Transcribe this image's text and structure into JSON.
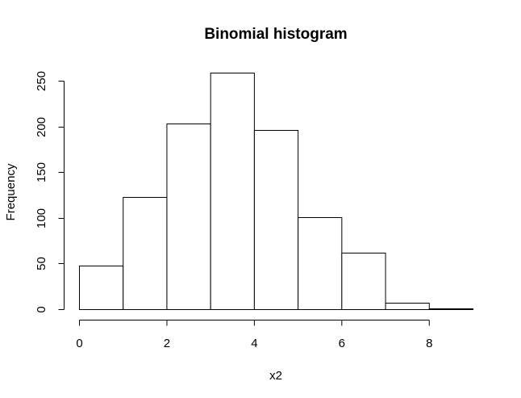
{
  "chart_data": {
    "type": "bar",
    "title": "Binomial histogram",
    "xlabel": "x2",
    "ylabel": "Frequency",
    "bin_edges": [
      0,
      1,
      2,
      3,
      4,
      5,
      6,
      7,
      8,
      9
    ],
    "values": [
      48,
      123,
      203,
      259,
      196,
      101,
      62,
      7,
      1
    ],
    "xlim": [
      0,
      9
    ],
    "ylim": [
      0,
      259
    ],
    "xticks": [
      0,
      2,
      4,
      6,
      8
    ],
    "yticks": [
      0,
      50,
      100,
      150,
      200,
      250
    ],
    "xtick_labels": [
      "0",
      "2",
      "4",
      "6",
      "8"
    ],
    "ytick_labels": [
      "0",
      "50",
      "100",
      "150",
      "200",
      "250"
    ],
    "grid": false,
    "legend": "none",
    "bar_fill": "#ffffff",
    "bar_stroke": "#000000"
  }
}
